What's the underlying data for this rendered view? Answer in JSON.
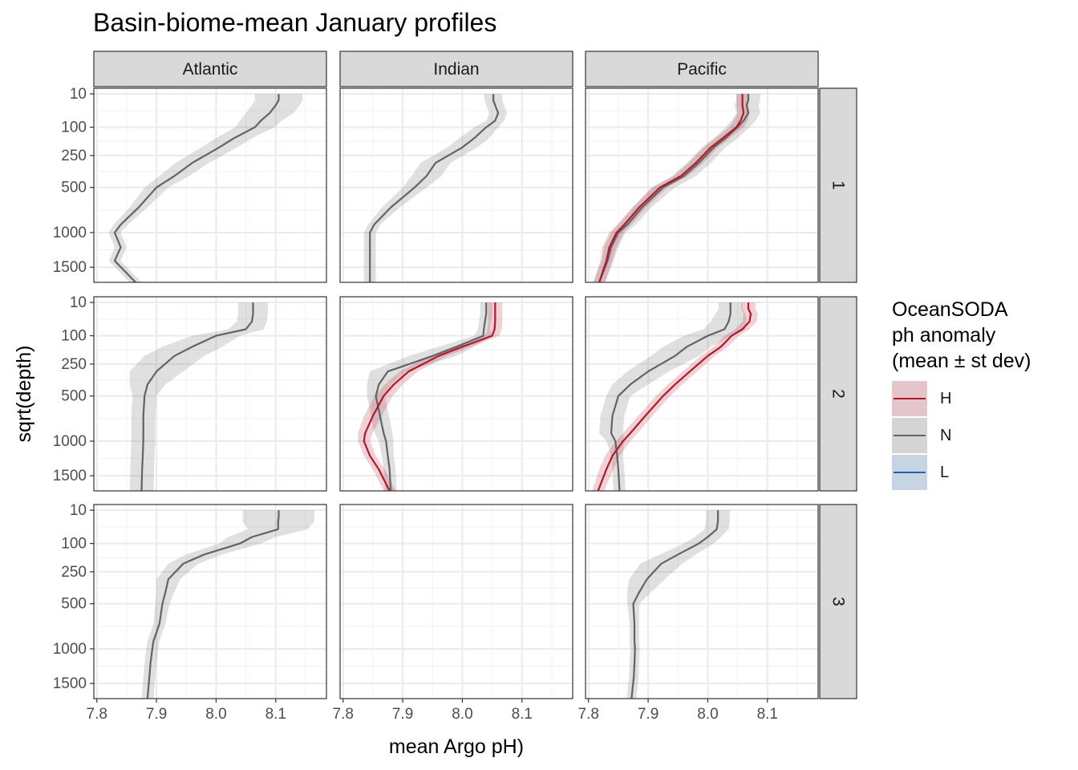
{
  "title": "Basin-biome-mean January profiles",
  "legend": {
    "title_lines": [
      "OceanSODA",
      "ph anomaly",
      "(mean ± st dev)"
    ],
    "items": [
      {
        "key": "H",
        "label": "H",
        "color": "#b2182b"
      },
      {
        "key": "N",
        "label": "N",
        "color": "#636363"
      },
      {
        "key": "L",
        "label": "L",
        "color": "#2166ac"
      }
    ]
  },
  "chart_data": {
    "type": "line",
    "xlabel": "mean Argo pH)",
    "ylabel": "sqrt(depth)",
    "x_ticks": [
      7.8,
      7.9,
      8.0,
      8.1
    ],
    "x_tick_labels": [
      "7.8",
      "7.9",
      "8.0",
      "8.1"
    ],
    "xlim": [
      7.795,
      8.185
    ],
    "y_ticks": [
      10,
      100,
      250,
      500,
      1000,
      1500
    ],
    "y_tick_labels": [
      "10",
      "100",
      "250",
      "500",
      "1000",
      "1500"
    ],
    "y_scale": "sqrt (reversed)",
    "ylim": [
      1750,
      4
    ],
    "column_strips": [
      "Atlantic",
      "Indian",
      "Pacific"
    ],
    "row_strips": [
      "1",
      "2",
      "3"
    ],
    "depths": [
      10,
      20,
      30,
      50,
      75,
      100,
      150,
      200,
      300,
      400,
      500,
      700,
      900,
      1000,
      1200,
      1400,
      1750
    ],
    "panels": [
      {
        "column": "Atlantic",
        "row": "1",
        "series": [
          {
            "key": "N",
            "mean": [
              8.105,
              8.105,
              8.1,
              8.09,
              8.075,
              8.065,
              8.03,
              8.005,
              7.96,
              7.93,
              7.9,
              7.87,
              7.84,
              7.83,
              7.84,
              7.83,
              7.865
            ],
            "sd": [
              0.04,
              0.04,
              0.04,
              0.04,
              0.035,
              0.033,
              0.03,
              0.03,
              0.028,
              0.025,
              0.02,
              0.015,
              0.012,
              0.01,
              0.01,
              0.01,
              0.01
            ]
          }
        ]
      },
      {
        "column": "Indian",
        "row": "1",
        "series": [
          {
            "key": "N",
            "mean": [
              8.052,
              8.052,
              8.055,
              8.06,
              8.055,
              8.04,
              8.02,
              8.0,
              7.955,
              7.94,
              7.92,
              7.88,
              7.852,
              7.845,
              7.845,
              7.845,
              7.845
            ],
            "sd": [
              0.015,
              0.015,
              0.015,
              0.015,
              0.015,
              0.02,
              0.025,
              0.025,
              0.025,
              0.025,
              0.02,
              0.015,
              0.01,
              0.01,
              0.01,
              0.01,
              0.01
            ]
          }
        ]
      },
      {
        "column": "Pacific",
        "row": "1",
        "series": [
          {
            "key": "N",
            "mean": [
              8.068,
              8.068,
              8.065,
              8.068,
              8.06,
              8.05,
              8.03,
              8.01,
              7.985,
              7.96,
              7.925,
              7.89,
              7.865,
              7.85,
              7.838,
              7.832,
              7.818
            ],
            "sd": [
              0.02,
              0.02,
              0.02,
              0.02,
              0.02,
              0.02,
              0.02,
              0.02,
              0.02,
              0.02,
              0.02,
              0.015,
              0.015,
              0.012,
              0.012,
              0.01,
              0.01
            ]
          },
          {
            "key": "H",
            "mean": [
              8.058,
              8.058,
              8.058,
              8.06,
              8.055,
              8.048,
              8.025,
              8.005,
              7.98,
              7.955,
              7.92,
              7.885,
              7.86,
              7.847,
              7.835,
              7.83,
              7.818
            ],
            "sd": [
              0.01,
              0.01,
              0.01,
              0.01,
              0.012,
              0.012,
              0.012,
              0.012,
              0.012,
              0.012,
              0.012,
              0.012,
              0.012,
              0.012,
              0.012,
              0.01,
              0.01
            ]
          }
        ]
      },
      {
        "column": "Atlantic",
        "row": "2",
        "series": [
          {
            "key": "N",
            "mean": [
              8.062,
              8.062,
              8.062,
              8.06,
              8.05,
              8.0,
              7.96,
              7.93,
              7.9,
              7.885,
              7.88,
              7.878,
              7.878,
              7.878,
              7.877,
              7.876,
              7.875
            ],
            "sd": [
              0.025,
              0.025,
              0.025,
              0.025,
              0.03,
              0.04,
              0.05,
              0.05,
              0.045,
              0.03,
              0.02,
              0.02,
              0.02,
              0.02,
              0.02,
              0.02,
              0.02
            ]
          }
        ]
      },
      {
        "column": "Indian",
        "row": "2",
        "series": [
          {
            "key": "N",
            "mean": [
              8.04,
              8.04,
              8.04,
              8.038,
              8.036,
              8.035,
              7.99,
              7.95,
              7.875,
              7.86,
              7.855,
              7.862,
              7.868,
              7.872,
              7.875,
              7.878,
              7.88
            ],
            "sd": [
              0.01,
              0.01,
              0.01,
              0.01,
              0.01,
              0.015,
              0.03,
              0.04,
              0.03,
              0.02,
              0.015,
              0.015,
              0.015,
              0.012,
              0.01,
              0.01,
              0.01
            ]
          },
          {
            "key": "H",
            "mean": [
              8.055,
              8.055,
              8.055,
              8.055,
              8.054,
              8.05,
              8.0,
              7.96,
              7.91,
              7.885,
              7.868,
              7.85,
              7.837,
              7.835,
              7.845,
              7.86,
              7.878
            ],
            "sd": [
              0.012,
              0.012,
              0.012,
              0.012,
              0.012,
              0.012,
              0.015,
              0.015,
              0.015,
              0.015,
              0.015,
              0.015,
              0.012,
              0.01,
              0.01,
              0.01,
              0.01
            ]
          }
        ]
      },
      {
        "column": "Pacific",
        "row": "2",
        "series": [
          {
            "key": "N",
            "mean": [
              8.038,
              8.038,
              8.038,
              8.035,
              8.028,
              8.0,
              7.965,
              7.945,
              7.9,
              7.87,
              7.85,
              7.84,
              7.838,
              7.845,
              7.848,
              7.85,
              7.852
            ],
            "sd": [
              0.02,
              0.02,
              0.025,
              0.03,
              0.035,
              0.04,
              0.04,
              0.04,
              0.035,
              0.03,
              0.02,
              0.02,
              0.02,
              0.015,
              0.01,
              0.01,
              0.01
            ]
          },
          {
            "key": "H",
            "mean": [
              8.068,
              8.068,
              8.072,
              8.07,
              8.058,
              8.04,
              8.022,
              8.0,
              7.97,
              7.945,
              7.925,
              7.895,
              7.87,
              7.858,
              7.84,
              7.83,
              7.816
            ],
            "sd": [
              0.012,
              0.012,
              0.012,
              0.012,
              0.012,
              0.012,
              0.012,
              0.012,
              0.012,
              0.012,
              0.012,
              0.012,
              0.012,
              0.012,
              0.012,
              0.012,
              0.01
            ]
          }
        ]
      },
      {
        "column": "Atlantic",
        "row": "3",
        "series": [
          {
            "key": "N",
            "mean": [
              8.105,
              8.105,
              8.104,
              8.104,
              8.06,
              8.04,
              7.98,
              7.945,
              7.92,
              7.915,
              7.91,
              7.905,
              7.895,
              7.893,
              7.89,
              7.888,
              7.885
            ],
            "sd": [
              0.06,
              0.06,
              0.06,
              0.05,
              0.04,
              0.035,
              0.03,
              0.025,
              0.02,
              0.015,
              0.012,
              0.01,
              0.01,
              0.01,
              0.01,
              0.01,
              0.01
            ]
          }
        ]
      },
      {
        "column": "Pacific",
        "row": "3",
        "series": [
          {
            "key": "N",
            "mean": [
              8.017,
              8.017,
              8.017,
              8.015,
              8.0,
              7.985,
              7.95,
              7.922,
              7.898,
              7.885,
              7.875,
              7.877,
              7.877,
              7.878,
              7.877,
              7.876,
              7.872
            ],
            "sd": [
              0.02,
              0.02,
              0.02,
              0.02,
              0.022,
              0.025,
              0.03,
              0.035,
              0.03,
              0.02,
              0.01,
              0.008,
              0.008,
              0.008,
              0.008,
              0.008,
              0.008
            ]
          }
        ]
      }
    ]
  }
}
